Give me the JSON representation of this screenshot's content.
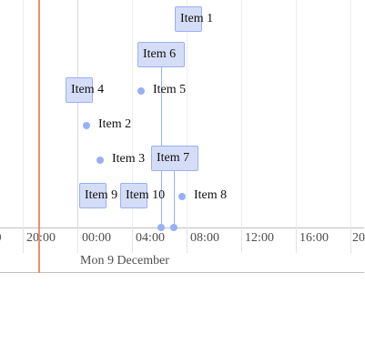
{
  "timeline": {
    "axis_ticks": [
      "0",
      "20:00",
      "00:00",
      "04:00",
      "08:00",
      "12:00",
      "16:00",
      "20"
    ],
    "major_label": "Mon 9 December"
  },
  "items": {
    "item1": "Item 1",
    "item2": "Item 2",
    "item3": "Item 3",
    "item4": "Item 4",
    "item5": "Item 5",
    "item6": "Item 6",
    "item7": "Item 7",
    "item8": "Item 8",
    "item9": "Item 9",
    "item10": "Item 10"
  },
  "colors": {
    "item_fill": "#d5ddf6",
    "item_border": "#97b0f8",
    "current_time": "#f08a78"
  }
}
